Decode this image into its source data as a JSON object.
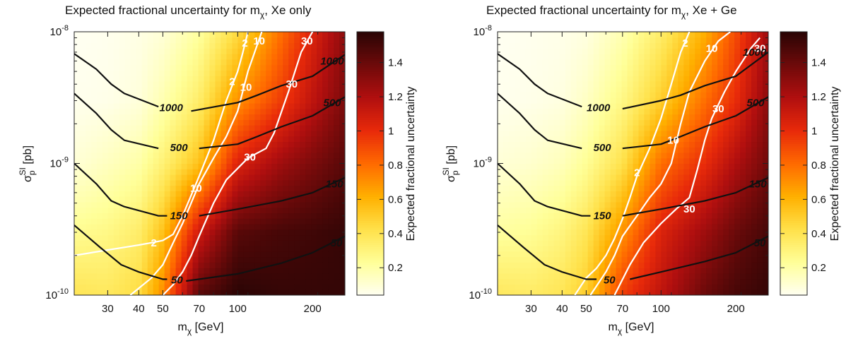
{
  "chart_data": [
    {
      "type": "heatmap",
      "title_main": "Expected fractional uncertainty for m",
      "title_sub": "χ",
      "title_suffix": ", Xe only",
      "xlabel_main": "m",
      "xlabel_sub": "χ",
      "xlabel_suffix": " [GeV]",
      "ylabel_main": "σ",
      "ylabel_sub": "p",
      "ylabel_sup": "SI",
      "ylabel_suffix": " [pb]",
      "x_scale": "log",
      "y_scale": "log",
      "xlim": [
        22,
        270
      ],
      "ylim": [
        1e-10,
        1e-08
      ],
      "x_ticks": [
        30,
        40,
        50,
        70,
        100,
        200
      ],
      "x_tick_labels": [
        "30",
        "40",
        "50",
        "70",
        "100",
        "200"
      ],
      "y_ticks": [
        1e-10,
        1e-09,
        1e-08
      ],
      "y_tick_labels": [
        {
          "base": "10",
          "exp": "-10"
        },
        {
          "base": "10",
          "exp": "-9"
        },
        {
          "base": "10",
          "exp": "-8"
        }
      ],
      "colorbar_label": "Expected fractional uncertainty",
      "colorbar_range": [
        0.04,
        1.58
      ],
      "colorbar_ticks": [
        0.2,
        0.4,
        0.6,
        0.8,
        1,
        1.2,
        1.4
      ],
      "colorbar_tick_labels": [
        "0.2",
        "0.4",
        "0.6",
        "0.8",
        "1",
        "1.2",
        "1.4"
      ],
      "colormap": [
        "#fffff2",
        "#ffff99",
        "#ffe14a",
        "#ffb000",
        "#ff6a00",
        "#e82a0a",
        "#b10f0f",
        "#6e0a0a",
        "#2a0505"
      ],
      "fill_grid": {
        "x": [
          22,
          30,
          40,
          50,
          70,
          100,
          150,
          200,
          270
        ],
        "y": [
          1e-10,
          3e-10,
          1e-09,
          3e-09,
          1e-08
        ],
        "z": [
          [
            0.4,
            0.38,
            0.44,
            0.72,
            1.45,
            1.58,
            1.55,
            1.55,
            1.55
          ],
          [
            0.25,
            0.28,
            0.35,
            0.55,
            1.1,
            1.45,
            1.5,
            1.52,
            1.55
          ],
          [
            0.1,
            0.15,
            0.2,
            0.32,
            0.55,
            1.05,
            1.25,
            1.35,
            1.45
          ],
          [
            0.05,
            0.06,
            0.09,
            0.18,
            0.35,
            0.7,
            0.95,
            1.15,
            1.35
          ],
          [
            0.04,
            0.05,
            0.07,
            0.1,
            0.22,
            0.45,
            0.8,
            1.05,
            1.3
          ]
        ]
      },
      "contours_black": [
        {
          "label": "1000",
          "x": [
            22,
            27,
            31,
            35,
            48
          ],
          "y": [
            6.8e-09,
            5.2e-09,
            4e-09,
            3.4e-09,
            2.7e-09
          ]
        },
        {
          "label": "1000",
          "x": [
            65,
            100,
            120,
            150,
            200,
            270
          ],
          "y": [
            2.5e-09,
            2.9e-09,
            3.3e-09,
            3.9e-09,
            4.6e-09,
            6.7e-09
          ]
        },
        {
          "label": "500",
          "x": [
            22,
            27,
            31,
            35,
            48
          ],
          "y": [
            3.4e-09,
            2.4e-09,
            1.8e-09,
            1.5e-09,
            1.3e-09
          ]
        },
        {
          "label": "500",
          "x": [
            70,
            100,
            120,
            150,
            200,
            270
          ],
          "y": [
            1.3e-09,
            1.4e-09,
            1.6e-09,
            1.9e-09,
            2.3e-09,
            3.2e-09
          ]
        },
        {
          "label": "150",
          "x": [
            22,
            27,
            31,
            35,
            48,
            52
          ],
          "y": [
            1e-09,
            7e-10,
            5.2e-10,
            4.7e-10,
            4e-10,
            4e-10
          ]
        },
        {
          "label": "150",
          "x": [
            70,
            100,
            150,
            200,
            270
          ],
          "y": [
            4e-10,
            4.5e-10,
            5.2e-10,
            6e-10,
            7.8e-10
          ]
        },
        {
          "label": "50",
          "x": [
            22,
            28,
            34,
            40,
            50,
            52
          ],
          "y": [
            3.4e-10,
            2.3e-10,
            1.7e-10,
            1.5e-10,
            1.32e-10,
            1.32e-10
          ]
        },
        {
          "label": "50",
          "x": [
            62,
            100,
            150,
            200,
            270
          ],
          "y": [
            1.28e-10,
            1.45e-10,
            1.75e-10,
            2.1e-10,
            2.8e-10
          ]
        }
      ],
      "contours_white": [
        {
          "label": "2",
          "x": [
            22,
            30,
            40,
            45,
            50,
            55,
            60,
            70,
            80,
            90,
            100,
            105,
            110
          ],
          "y": [
            2e-10,
            2.2e-10,
            2.4e-10,
            2.5e-10,
            2.6e-10,
            2.9e-10,
            4e-10,
            8e-10,
            1.5e-09,
            3e-09,
            5e-09,
            7e-09,
            1e-08
          ]
        },
        {
          "label": "10",
          "x": [
            37,
            45,
            50,
            55,
            60,
            65,
            70,
            80,
            90,
            100,
            110,
            120,
            125
          ],
          "y": [
            1e-10,
            1.35e-10,
            1.7e-10,
            2.5e-10,
            3.5e-10,
            5e-10,
            7e-10,
            1.1e-09,
            1.6e-09,
            2.5e-09,
            5e-09,
            8e-09,
            1e-08
          ]
        },
        {
          "label": "30",
          "x": [
            50,
            55,
            60,
            65,
            70,
            80,
            90,
            110,
            130,
            140,
            160,
            180,
            200
          ],
          "y": [
            1e-10,
            1.2e-10,
            1.5e-10,
            2e-10,
            2.8e-10,
            5e-10,
            7.5e-10,
            1.1e-09,
            1.3e-09,
            1.7e-09,
            3.5e-09,
            7e-09,
            1e-08
          ]
        }
      ],
      "labels_black": [
        {
          "text": "1000",
          "x": 54,
          "y": 2.65e-09
        },
        {
          "text": "1000",
          "x": 240,
          "y": 6e-09
        },
        {
          "text": "500",
          "x": 58,
          "y": 1.32e-09
        },
        {
          "text": "500",
          "x": 240,
          "y": 2.9e-09
        },
        {
          "text": "150",
          "x": 58,
          "y": 4e-10
        },
        {
          "text": "150",
          "x": 245,
          "y": 7e-10
        },
        {
          "text": "50",
          "x": 57,
          "y": 1.3e-10
        },
        {
          "text": "50",
          "x": 250,
          "y": 2.5e-10
        }
      ],
      "labels_white": [
        {
          "text": "2",
          "x": 46,
          "y": 2.5e-10
        },
        {
          "text": "2",
          "x": 95,
          "y": 4.2e-09
        },
        {
          "text": "2",
          "x": 107,
          "y": 8.2e-09
        },
        {
          "text": "10",
          "x": 68,
          "y": 6.5e-10
        },
        {
          "text": "10",
          "x": 108,
          "y": 3.8e-09
        },
        {
          "text": "10",
          "x": 122,
          "y": 8.5e-09
        },
        {
          "text": "30",
          "x": 112,
          "y": 1.12e-09
        },
        {
          "text": "30",
          "x": 165,
          "y": 4e-09
        },
        {
          "text": "30",
          "x": 190,
          "y": 8.5e-09
        }
      ]
    },
    {
      "type": "heatmap",
      "title_main": "Expected fractional uncertainty for m",
      "title_sub": "χ",
      "title_suffix": ", Xe + Ge",
      "xlabel_main": "m",
      "xlabel_sub": "χ",
      "xlabel_suffix": " [GeV]",
      "ylabel_main": "σ",
      "ylabel_sub": "p",
      "ylabel_sup": "SI",
      "ylabel_suffix": " [pb]",
      "x_scale": "log",
      "y_scale": "log",
      "xlim": [
        22,
        270
      ],
      "ylim": [
        1e-10,
        1e-08
      ],
      "x_ticks": [
        30,
        40,
        50,
        70,
        100,
        200
      ],
      "x_tick_labels": [
        "30",
        "40",
        "50",
        "70",
        "100",
        "200"
      ],
      "y_ticks": [
        1e-10,
        1e-09,
        1e-08
      ],
      "y_tick_labels": [
        {
          "base": "10",
          "exp": "-10"
        },
        {
          "base": "10",
          "exp": "-9"
        },
        {
          "base": "10",
          "exp": "-8"
        }
      ],
      "colorbar_label": "Expected fractional uncertainty",
      "colorbar_range": [
        0.04,
        1.58
      ],
      "colorbar_ticks": [
        0.2,
        0.4,
        0.6,
        0.8,
        1,
        1.2,
        1.4
      ],
      "colorbar_tick_labels": [
        "0.2",
        "0.4",
        "0.6",
        "0.8",
        "1",
        "1.2",
        "1.4"
      ],
      "colormap": [
        "#fffff2",
        "#ffff99",
        "#ffe14a",
        "#ffb000",
        "#ff6a00",
        "#e82a0a",
        "#b10f0f",
        "#6e0a0a",
        "#2a0505"
      ],
      "fill_grid": {
        "x": [
          22,
          30,
          40,
          50,
          70,
          100,
          150,
          200,
          270
        ],
        "y": [
          1e-10,
          3e-10,
          1e-09,
          3e-09,
          1e-08
        ],
        "z": [
          [
            0.38,
            0.36,
            0.4,
            0.5,
            0.95,
            1.15,
            1.4,
            1.5,
            1.55
          ],
          [
            0.22,
            0.24,
            0.3,
            0.4,
            0.7,
            1.05,
            1.25,
            1.4,
            1.5
          ],
          [
            0.1,
            0.12,
            0.16,
            0.24,
            0.42,
            0.8,
            1.0,
            1.2,
            1.38
          ],
          [
            0.05,
            0.06,
            0.08,
            0.14,
            0.28,
            0.5,
            0.8,
            1.0,
            1.3
          ],
          [
            0.04,
            0.05,
            0.06,
            0.08,
            0.18,
            0.35,
            0.62,
            0.9,
            1.25
          ]
        ]
      },
      "contours_black": [
        {
          "label": "1000",
          "x": [
            22,
            27,
            31,
            35,
            48
          ],
          "y": [
            6.8e-09,
            5.2e-09,
            4e-09,
            3.4e-09,
            2.7e-09
          ]
        },
        {
          "label": "1000",
          "x": [
            70,
            100,
            120,
            150,
            200,
            270
          ],
          "y": [
            2.6e-09,
            3e-09,
            3.3e-09,
            3.9e-09,
            4.6e-09,
            7e-09
          ]
        },
        {
          "label": "500",
          "x": [
            22,
            27,
            31,
            35,
            48
          ],
          "y": [
            3.4e-09,
            2.4e-09,
            1.8e-09,
            1.5e-09,
            1.3e-09
          ]
        },
        {
          "label": "500",
          "x": [
            70,
            100,
            120,
            150,
            200,
            270
          ],
          "y": [
            1.3e-09,
            1.4e-09,
            1.6e-09,
            1.9e-09,
            2.3e-09,
            3.2e-09
          ]
        },
        {
          "label": "150",
          "x": [
            22,
            27,
            31,
            35,
            48,
            52
          ],
          "y": [
            1e-09,
            7e-10,
            5.2e-10,
            4.7e-10,
            4e-10,
            4e-10
          ]
        },
        {
          "label": "150",
          "x": [
            70,
            100,
            150,
            200,
            270
          ],
          "y": [
            4e-10,
            4.5e-10,
            5.2e-10,
            6e-10,
            7.8e-10
          ]
        },
        {
          "label": "50",
          "x": [
            22,
            28,
            34,
            40,
            50,
            55
          ],
          "y": [
            3.4e-10,
            2.3e-10,
            1.7e-10,
            1.5e-10,
            1.32e-10,
            1.32e-10
          ]
        },
        {
          "label": "50",
          "x": [
            75,
            100,
            150,
            200,
            270
          ],
          "y": [
            1.32e-10,
            1.5e-10,
            1.8e-10,
            2.1e-10,
            2.8e-10
          ]
        }
      ],
      "contours_white": [
        {
          "label": "2",
          "x": [
            45,
            50,
            55,
            60,
            65,
            70,
            75,
            80,
            90,
            100,
            110,
            120,
            130
          ],
          "y": [
            1e-10,
            1.35e-10,
            1.6e-10,
            2e-10,
            2.7e-10,
            3.8e-10,
            5.5e-10,
            8e-10,
            1.3e-09,
            2.2e-09,
            4e-09,
            7e-09,
            1e-08
          ]
        },
        {
          "label": "10",
          "x": [
            52,
            60,
            65,
            70,
            80,
            90,
            100,
            110,
            120,
            130,
            150,
            170,
            190
          ],
          "y": [
            1e-10,
            1.5e-10,
            2e-10,
            2.8e-10,
            4e-10,
            5.5e-10,
            7e-10,
            1e-09,
            2e-09,
            3.5e-09,
            6e-09,
            8.5e-09,
            1e-08
          ]
        },
        {
          "label": "30",
          "x": [
            65,
            75,
            85,
            100,
            115,
            130,
            140,
            150,
            160,
            180,
            200,
            230,
            250
          ],
          "y": [
            1e-10,
            1.7e-10,
            2.5e-10,
            3.5e-10,
            4.5e-10,
            5.5e-10,
            9e-10,
            1.5e-09,
            2.2e-09,
            3.5e-09,
            5e-09,
            7.5e-09,
            9e-09
          ]
        }
      ],
      "labels_black": [
        {
          "text": "1000",
          "x": 56,
          "y": 2.65e-09
        },
        {
          "text": "1000",
          "x": 238,
          "y": 7e-09
        },
        {
          "text": "500",
          "x": 58,
          "y": 1.32e-09
        },
        {
          "text": "500",
          "x": 240,
          "y": 2.9e-09
        },
        {
          "text": "150",
          "x": 58,
          "y": 4e-10
        },
        {
          "text": "150",
          "x": 245,
          "y": 7e-10
        },
        {
          "text": "50",
          "x": 62,
          "y": 1.3e-10
        },
        {
          "text": "50",
          "x": 250,
          "y": 2.5e-10
        }
      ],
      "labels_white": [
        {
          "text": "2",
          "x": 80,
          "y": 8.5e-10
        },
        {
          "text": "2",
          "x": 125,
          "y": 8.2e-09
        },
        {
          "text": "10",
          "x": 112,
          "y": 1.5e-09
        },
        {
          "text": "10",
          "x": 160,
          "y": 7.5e-09
        },
        {
          "text": "30",
          "x": 130,
          "y": 4.5e-10
        },
        {
          "text": "30",
          "x": 170,
          "y": 2.6e-09
        },
        {
          "text": "30",
          "x": 250,
          "y": 7.5e-09
        }
      ]
    }
  ]
}
